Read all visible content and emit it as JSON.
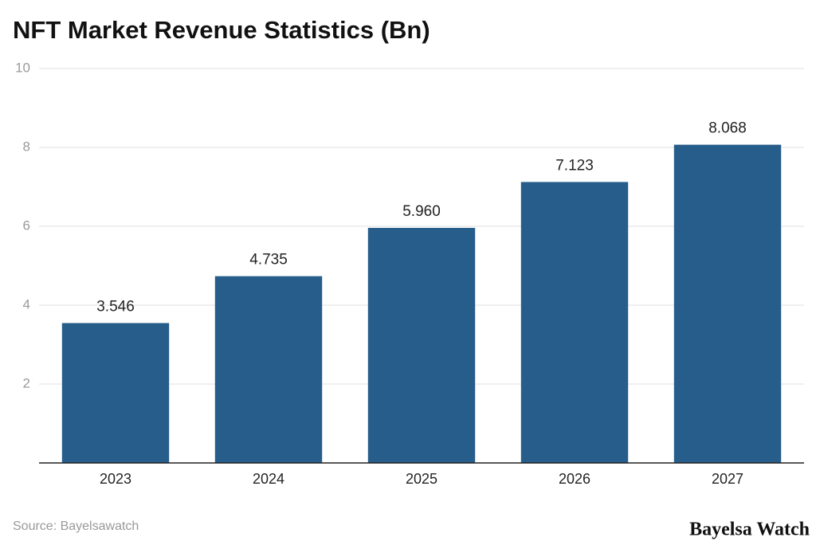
{
  "chart_data": {
    "type": "bar",
    "title": "NFT Market Revenue Statistics (Bn)",
    "categories": [
      "2023",
      "2024",
      "2025",
      "2026",
      "2027"
    ],
    "values": [
      3.546,
      4.735,
      5.96,
      7.123,
      8.068
    ],
    "value_labels": [
      "3.546",
      "4.735",
      "5.960",
      "7.123",
      "8.068"
    ],
    "color": "#265d8a",
    "ylim": [
      0,
      10
    ],
    "yticks": [
      2,
      4,
      6,
      8,
      10
    ],
    "grid": true,
    "source": "Source: Bayelsawatch",
    "watermark": "Bayelsa Watch"
  }
}
